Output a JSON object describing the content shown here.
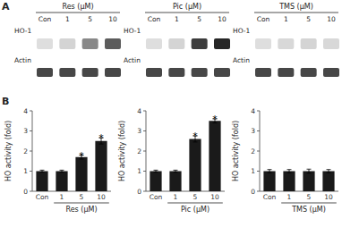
{
  "chart_data": [
    {
      "type": "western_blot",
      "title": "Res (μM)",
      "categories": [
        "Con",
        "1",
        "5",
        "10"
      ],
      "series": [
        {
          "name": "HO-1",
          "values": [
            0.15,
            0.2,
            0.55,
            0.75
          ]
        },
        {
          "name": "Actin",
          "values": [
            0.85,
            0.85,
            0.85,
            0.85
          ]
        }
      ],
      "annotations": [
        {
          "text": "A"
        }
      ]
    },
    {
      "type": "western_blot",
      "title": "Pic (μM)",
      "categories": [
        "Con",
        "1",
        "5",
        "10"
      ],
      "series": [
        {
          "name": "HO-1",
          "values": [
            0.15,
            0.2,
            0.9,
            1.0
          ]
        },
        {
          "name": "Actin",
          "values": [
            0.85,
            0.85,
            0.85,
            0.85
          ]
        }
      ]
    },
    {
      "type": "western_blot",
      "title": "TMS (μM)",
      "categories": [
        "Con",
        "1",
        "5",
        "10"
      ],
      "series": [
        {
          "name": "HO-1",
          "values": [
            0.15,
            0.18,
            0.2,
            0.18
          ]
        },
        {
          "name": "Actin",
          "values": [
            0.85,
            0.85,
            0.85,
            0.85
          ]
        }
      ]
    },
    {
      "type": "bar",
      "categories": [
        "Con",
        "1",
        "5",
        "10"
      ],
      "values": [
        1.0,
        1.0,
        1.7,
        2.5
      ],
      "errors": [
        0.05,
        0.05,
        0.1,
        0.15
      ],
      "color": "#1a1a1a",
      "xlabel": "Res (μM)",
      "ylabel": "HO activity (fold)",
      "ylim": [
        0,
        4
      ],
      "yticks": [
        0,
        1,
        2,
        3,
        4
      ],
      "annotations": [
        {
          "text": "B"
        },
        {
          "text": "*",
          "x": "5"
        },
        {
          "text": "*",
          "x": "10"
        }
      ]
    },
    {
      "type": "bar",
      "categories": [
        "Con",
        "1",
        "5",
        "10"
      ],
      "values": [
        1.0,
        1.0,
        2.6,
        3.5
      ],
      "errors": [
        0.05,
        0.05,
        0.15,
        0.1
      ],
      "color": "#1a1a1a",
      "xlabel": "Pic (μM)",
      "ylabel": "HO activity (fold)",
      "ylim": [
        0,
        4
      ],
      "yticks": [
        0,
        1,
        2,
        3,
        4
      ],
      "annotations": [
        {
          "text": "*",
          "x": "5"
        },
        {
          "text": "*",
          "x": "10"
        }
      ]
    },
    {
      "type": "bar",
      "categories": [
        "Con",
        "1",
        "5",
        "10"
      ],
      "values": [
        1.0,
        1.0,
        1.0,
        1.0
      ],
      "errors": [
        0.08,
        0.08,
        0.1,
        0.08
      ],
      "color": "#1a1a1a",
      "xlabel": "TMS (μM)",
      "ylabel": "HO activity (fold)",
      "ylim": [
        0,
        4
      ],
      "yticks": [
        0,
        1,
        2,
        3,
        4
      ]
    }
  ]
}
